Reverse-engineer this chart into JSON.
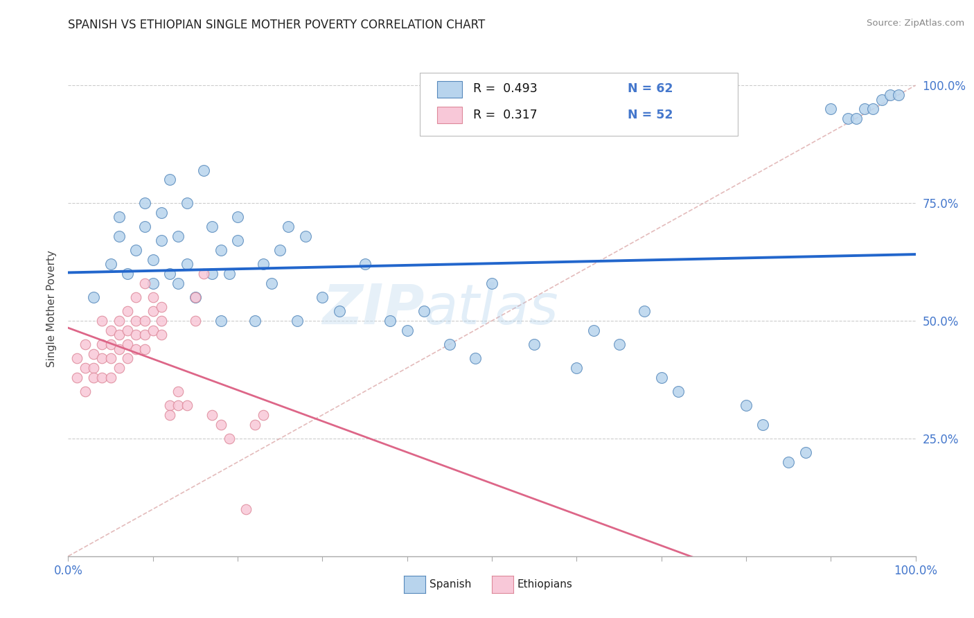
{
  "title": "SPANISH VS ETHIOPIAN SINGLE MOTHER POVERTY CORRELATION CHART",
  "source": "Source: ZipAtlas.com",
  "ylabel": "Single Mother Poverty",
  "watermark_zip": "ZIP",
  "watermark_atlas": "atlas",
  "legend_r_spanish": "R =  0.493",
  "legend_n_spanish": "N = 62",
  "legend_r_ethiopian": "R =  0.317",
  "legend_n_ethiopian": "N = 52",
  "spanish_color": "#b8d4ed",
  "spanish_edge": "#5588bb",
  "ethiopian_color": "#f8c8d8",
  "ethiopian_edge": "#dd8899",
  "spanish_line_color": "#2266cc",
  "ethiopian_line_color": "#dd6688",
  "diagonal_color": "#ddaaaa",
  "grid_color": "#cccccc",
  "tick_color": "#4477cc",
  "spanish_points": [
    [
      0.03,
      0.55
    ],
    [
      0.05,
      0.62
    ],
    [
      0.06,
      0.68
    ],
    [
      0.06,
      0.72
    ],
    [
      0.07,
      0.6
    ],
    [
      0.08,
      0.65
    ],
    [
      0.09,
      0.7
    ],
    [
      0.09,
      0.75
    ],
    [
      0.1,
      0.63
    ],
    [
      0.1,
      0.58
    ],
    [
      0.11,
      0.67
    ],
    [
      0.11,
      0.73
    ],
    [
      0.12,
      0.6
    ],
    [
      0.12,
      0.8
    ],
    [
      0.13,
      0.58
    ],
    [
      0.13,
      0.68
    ],
    [
      0.14,
      0.62
    ],
    [
      0.14,
      0.75
    ],
    [
      0.15,
      0.55
    ],
    [
      0.16,
      0.82
    ],
    [
      0.17,
      0.6
    ],
    [
      0.17,
      0.7
    ],
    [
      0.18,
      0.5
    ],
    [
      0.18,
      0.65
    ],
    [
      0.19,
      0.6
    ],
    [
      0.2,
      0.67
    ],
    [
      0.2,
      0.72
    ],
    [
      0.22,
      0.5
    ],
    [
      0.23,
      0.62
    ],
    [
      0.24,
      0.58
    ],
    [
      0.25,
      0.65
    ],
    [
      0.26,
      0.7
    ],
    [
      0.27,
      0.5
    ],
    [
      0.28,
      0.68
    ],
    [
      0.3,
      0.55
    ],
    [
      0.32,
      0.52
    ],
    [
      0.35,
      0.62
    ],
    [
      0.38,
      0.5
    ],
    [
      0.4,
      0.48
    ],
    [
      0.42,
      0.52
    ],
    [
      0.45,
      0.45
    ],
    [
      0.48,
      0.42
    ],
    [
      0.5,
      0.58
    ],
    [
      0.55,
      0.45
    ],
    [
      0.6,
      0.4
    ],
    [
      0.62,
      0.48
    ],
    [
      0.65,
      0.45
    ],
    [
      0.68,
      0.52
    ],
    [
      0.7,
      0.38
    ],
    [
      0.72,
      0.35
    ],
    [
      0.8,
      0.32
    ],
    [
      0.82,
      0.28
    ],
    [
      0.85,
      0.2
    ],
    [
      0.87,
      0.22
    ],
    [
      0.9,
      0.95
    ],
    [
      0.92,
      0.93
    ],
    [
      0.93,
      0.93
    ],
    [
      0.94,
      0.95
    ],
    [
      0.95,
      0.95
    ],
    [
      0.96,
      0.97
    ],
    [
      0.97,
      0.98
    ],
    [
      0.98,
      0.98
    ]
  ],
  "ethiopian_points": [
    [
      0.01,
      0.42
    ],
    [
      0.01,
      0.38
    ],
    [
      0.02,
      0.45
    ],
    [
      0.02,
      0.4
    ],
    [
      0.02,
      0.35
    ],
    [
      0.03,
      0.43
    ],
    [
      0.03,
      0.4
    ],
    [
      0.03,
      0.38
    ],
    [
      0.04,
      0.5
    ],
    [
      0.04,
      0.45
    ],
    [
      0.04,
      0.42
    ],
    [
      0.04,
      0.38
    ],
    [
      0.05,
      0.48
    ],
    [
      0.05,
      0.45
    ],
    [
      0.05,
      0.42
    ],
    [
      0.05,
      0.38
    ],
    [
      0.06,
      0.5
    ],
    [
      0.06,
      0.47
    ],
    [
      0.06,
      0.44
    ],
    [
      0.06,
      0.4
    ],
    [
      0.07,
      0.52
    ],
    [
      0.07,
      0.48
    ],
    [
      0.07,
      0.45
    ],
    [
      0.07,
      0.42
    ],
    [
      0.08,
      0.5
    ],
    [
      0.08,
      0.47
    ],
    [
      0.08,
      0.44
    ],
    [
      0.08,
      0.55
    ],
    [
      0.09,
      0.5
    ],
    [
      0.09,
      0.47
    ],
    [
      0.09,
      0.44
    ],
    [
      0.09,
      0.58
    ],
    [
      0.1,
      0.52
    ],
    [
      0.1,
      0.48
    ],
    [
      0.1,
      0.55
    ],
    [
      0.11,
      0.5
    ],
    [
      0.11,
      0.47
    ],
    [
      0.11,
      0.53
    ],
    [
      0.12,
      0.32
    ],
    [
      0.12,
      0.3
    ],
    [
      0.13,
      0.32
    ],
    [
      0.13,
      0.35
    ],
    [
      0.14,
      0.32
    ],
    [
      0.15,
      0.5
    ],
    [
      0.15,
      0.55
    ],
    [
      0.16,
      0.6
    ],
    [
      0.17,
      0.3
    ],
    [
      0.18,
      0.28
    ],
    [
      0.19,
      0.25
    ],
    [
      0.21,
      0.1
    ],
    [
      0.22,
      0.28
    ],
    [
      0.23,
      0.3
    ]
  ]
}
